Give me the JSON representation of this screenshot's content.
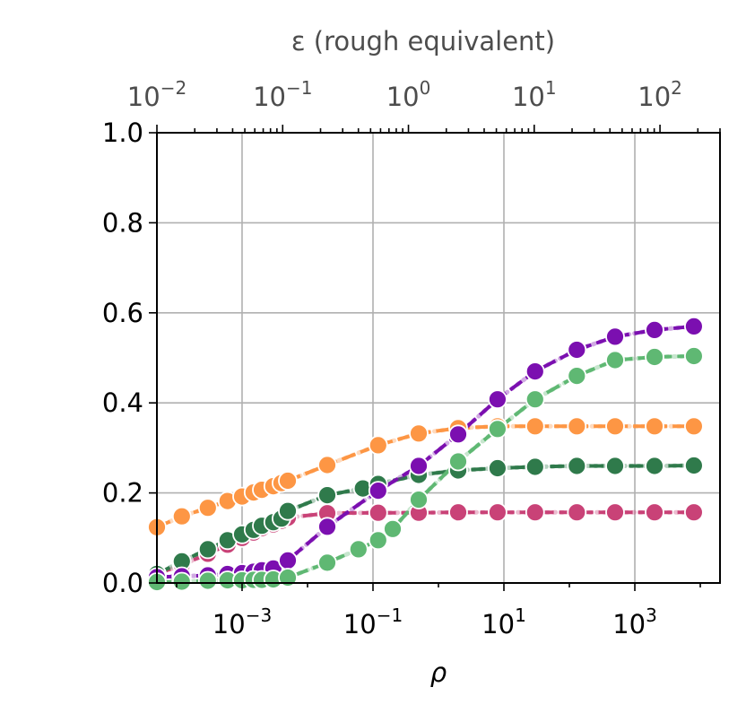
{
  "chart_data": {
    "type": "line",
    "xlabel": "ρ",
    "top_xlabel": "ε (rough equivalent)",
    "xscale": "log",
    "xlim": [
      5e-05,
      20000
    ],
    "ylim": [
      0.0,
      1.0
    ],
    "y_ticks": [
      "0.0",
      "0.2",
      "0.4",
      "0.6",
      "0.8",
      "1.0"
    ],
    "x_tick_values": [
      0.001,
      0.1,
      10,
      1000
    ],
    "x_ticks": [
      {
        "base": "10",
        "exp": "−3"
      },
      {
        "base": "10",
        "exp": "−1"
      },
      {
        "base": "10",
        "exp": "1"
      },
      {
        "base": "10",
        "exp": "3"
      }
    ],
    "top_xlim": [
      0.01,
      300
    ],
    "top_tick_values": [
      0.01,
      0.1,
      1,
      10,
      100
    ],
    "top_ticks": [
      {
        "base": "10",
        "exp": "−2"
      },
      {
        "base": "10",
        "exp": "−1"
      },
      {
        "base": "10",
        "exp": "0"
      },
      {
        "base": "10",
        "exp": "1"
      },
      {
        "base": "10",
        "exp": "2"
      }
    ],
    "grid": true,
    "series": [
      {
        "color": "#fd9644",
        "points": [
          [
            5e-05,
            0.124
          ],
          [
            0.00012,
            0.148
          ],
          [
            0.0003,
            0.167
          ],
          [
            0.0006,
            0.182
          ],
          [
            0.001,
            0.192
          ],
          [
            0.0015,
            0.201
          ],
          [
            0.002,
            0.207
          ],
          [
            0.003,
            0.215
          ],
          [
            0.004,
            0.222
          ],
          [
            0.005,
            0.227
          ],
          [
            0.02,
            0.262
          ],
          [
            0.12,
            0.306
          ],
          [
            0.5,
            0.332
          ],
          [
            2,
            0.344
          ],
          [
            8,
            0.348
          ],
          [
            30,
            0.348
          ],
          [
            130,
            0.348
          ],
          [
            500,
            0.348
          ],
          [
            2000,
            0.348
          ],
          [
            8000,
            0.348
          ]
        ]
      },
      {
        "color": "#c94277",
        "points": [
          [
            5e-05,
            0.02
          ],
          [
            0.00012,
            0.04
          ],
          [
            0.0003,
            0.065
          ],
          [
            0.0006,
            0.085
          ],
          [
            0.001,
            0.1
          ],
          [
            0.0015,
            0.112
          ],
          [
            0.002,
            0.122
          ],
          [
            0.003,
            0.13
          ],
          [
            0.004,
            0.138
          ],
          [
            0.005,
            0.145
          ],
          [
            0.02,
            0.155
          ],
          [
            0.12,
            0.156
          ],
          [
            0.5,
            0.156
          ],
          [
            2,
            0.157
          ],
          [
            8,
            0.157
          ],
          [
            30,
            0.157
          ],
          [
            130,
            0.157
          ],
          [
            500,
            0.157
          ],
          [
            2000,
            0.157
          ],
          [
            8000,
            0.157
          ]
        ]
      },
      {
        "color": "#2f7a4b",
        "points": [
          [
            5e-05,
            0.02
          ],
          [
            0.00012,
            0.048
          ],
          [
            0.0003,
            0.075
          ],
          [
            0.0006,
            0.095
          ],
          [
            0.001,
            0.108
          ],
          [
            0.0015,
            0.118
          ],
          [
            0.002,
            0.127
          ],
          [
            0.003,
            0.135
          ],
          [
            0.004,
            0.143
          ],
          [
            0.005,
            0.16
          ],
          [
            0.02,
            0.195
          ],
          [
            0.07,
            0.21
          ],
          [
            0.12,
            0.22
          ],
          [
            0.5,
            0.24
          ],
          [
            2,
            0.25
          ],
          [
            8,
            0.255
          ],
          [
            30,
            0.258
          ],
          [
            130,
            0.26
          ],
          [
            500,
            0.26
          ],
          [
            2000,
            0.26
          ],
          [
            8000,
            0.261
          ]
        ]
      },
      {
        "color": "#7b0fb0",
        "points": [
          [
            5e-05,
            0.013
          ],
          [
            0.00012,
            0.015
          ],
          [
            0.0003,
            0.017
          ],
          [
            0.0006,
            0.02
          ],
          [
            0.001,
            0.022
          ],
          [
            0.0015,
            0.025
          ],
          [
            0.002,
            0.028
          ],
          [
            0.003,
            0.032
          ],
          [
            0.005,
            0.05
          ],
          [
            0.02,
            0.125
          ],
          [
            0.12,
            0.205
          ],
          [
            0.5,
            0.26
          ],
          [
            2,
            0.33
          ],
          [
            8,
            0.408
          ],
          [
            30,
            0.47
          ],
          [
            130,
            0.518
          ],
          [
            500,
            0.547
          ],
          [
            2000,
            0.562
          ],
          [
            8000,
            0.57
          ]
        ]
      },
      {
        "color": "#5fb873",
        "points": [
          [
            5e-05,
            0.002
          ],
          [
            0.00012,
            0.003
          ],
          [
            0.0003,
            0.005
          ],
          [
            0.0006,
            0.006
          ],
          [
            0.001,
            0.006
          ],
          [
            0.0015,
            0.007
          ],
          [
            0.002,
            0.007
          ],
          [
            0.003,
            0.008
          ],
          [
            0.005,
            0.012
          ],
          [
            0.02,
            0.045
          ],
          [
            0.06,
            0.075
          ],
          [
            0.12,
            0.095
          ],
          [
            0.2,
            0.12
          ],
          [
            0.5,
            0.185
          ],
          [
            2,
            0.27
          ],
          [
            8,
            0.342
          ],
          [
            30,
            0.408
          ],
          [
            130,
            0.46
          ],
          [
            500,
            0.495
          ],
          [
            2000,
            0.502
          ],
          [
            8000,
            0.504
          ]
        ]
      }
    ]
  }
}
